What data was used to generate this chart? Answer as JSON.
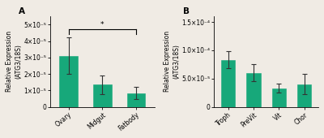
{
  "panel_A": {
    "categories": [
      "Ovary",
      "Midgut",
      "Fatbody"
    ],
    "values": [
      3.1e-05,
      1.35e-05,
      8.5e-06
    ],
    "errors": [
      1.1e-05,
      5.5e-06,
      3.5e-06
    ],
    "ylim": [
      0,
      5.5e-05
    ],
    "yticks": [
      0,
      1e-05,
      2e-05,
      3e-05,
      4e-05,
      5e-05
    ],
    "ytick_labels": [
      "0",
      "1×10⁻⁵",
      "2×10⁻⁵",
      "3×10⁻⁵",
      "4×10⁻⁵",
      "5×10⁻⁵"
    ],
    "ylabel": "Relative Expression\n(ATG3/18S)",
    "label": "A",
    "sig_bar": [
      0,
      2
    ],
    "sig_text": "*"
  },
  "panel_B": {
    "categories": [
      "Troph",
      "PreVit",
      "Vit",
      "Chor"
    ],
    "values": [
      8.3e-05,
      6e-05,
      3.3e-05,
      4e-05
    ],
    "errors": [
      1.5e-05,
      1.5e-05,
      8e-06,
      1.8e-05
    ],
    "ylim": [
      0,
      0.00016
    ],
    "yticks": [
      0,
      5e-05,
      0.0001,
      0.00015
    ],
    "ytick_labels": [
      "0",
      "5.0×10⁻⁵",
      "1.0×10⁻⁴",
      "1.5×10⁻⁴"
    ],
    "ylabel": "Relative Expression\n(ATG3/18S)",
    "label": "B"
  },
  "bar_color": "#17a87a",
  "bar_edge_color": "#17a87a",
  "error_color": "#333333",
  "background_color": "#f0ebe4",
  "font_size": 5.5,
  "label_fontsize": 7.5
}
